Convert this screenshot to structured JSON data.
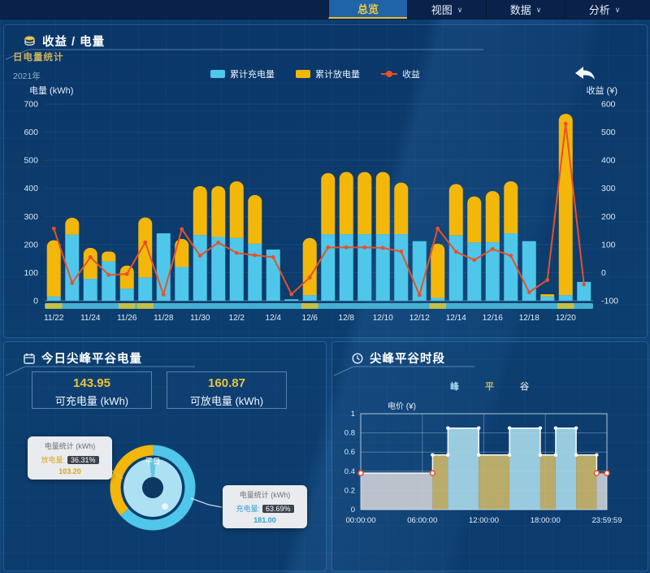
{
  "nav": {
    "tabs": [
      {
        "label": "总览",
        "active": true
      },
      {
        "label": "视图",
        "active": false
      },
      {
        "label": "数据",
        "active": false
      },
      {
        "label": "分析",
        "active": false
      }
    ]
  },
  "revenue_panel": {
    "title": "收益 / 电量",
    "subtitle": "日电量统计",
    "year": "2021年",
    "left_axis_label": "电量 (kWh)",
    "right_axis_label": "收益 (¥)"
  },
  "today_panel": {
    "title": "今日尖峰平谷电量",
    "stats": [
      {
        "value": "143.95",
        "label": "可充电量 (kWh)"
      },
      {
        "value": "160.87",
        "label": "可放电量 (kWh)"
      }
    ],
    "tooltips": {
      "header": "电量统计 (kWh)",
      "discharge": {
        "label": "放电量:",
        "pct": "36.31%",
        "value": "103.20"
      },
      "charge": {
        "label": "充电量:",
        "pct": "63.69%",
        "value": "181.00"
      }
    }
  },
  "tou_panel": {
    "title": "尖峰平谷时段",
    "price_axis_label": "电价 (¥)"
  },
  "colors": {
    "charge_bar": "#4ec7ea",
    "discharge_bar": "#f3b70a",
    "income_line": "#e8502a",
    "accent_yellow": "#e8bf2f",
    "nav_active_bg": "#1f63a8",
    "peak_fill": "#a6d7e8",
    "flat_fill": "#c9b469",
    "valley_fill": "#c9cdd4"
  },
  "chart_data": [
    {
      "id": "daily_energy_income",
      "type": "bar",
      "title": "日电量统计",
      "categories": [
        "11/22",
        "11/23",
        "11/24",
        "11/25",
        "11/26",
        "11/27",
        "11/28",
        "11/29",
        "11/30",
        "12/1",
        "12/2",
        "12/3",
        "12/4",
        "12/5",
        "12/6",
        "12/7",
        "12/8",
        "12/9",
        "12/10",
        "12/11",
        "12/12",
        "12/13",
        "12/14",
        "12/15",
        "12/16",
        "12/17",
        "12/18",
        "12/19",
        "12/20",
        "12/21"
      ],
      "x_label_every": 2,
      "series": [
        {
          "name": "累计充电量",
          "type": "bar",
          "stack": true,
          "color": "#4ec7ea",
          "values": [
            15,
            235,
            78,
            140,
            43,
            82,
            240,
            120,
            234,
            227,
            223,
            203,
            182,
            5,
            20,
            237,
            237,
            237,
            237,
            237,
            212,
            10,
            232,
            207,
            208,
            240,
            212,
            15,
            20,
            67
          ]
        },
        {
          "name": "累计放电量",
          "type": "bar",
          "stack": true,
          "color": "#f3b70a",
          "values": [
            200,
            60,
            110,
            35,
            82,
            214,
            0,
            100,
            174,
            181,
            202,
            173,
            0,
            0,
            203,
            217,
            221,
            221,
            221,
            183,
            0,
            193,
            183,
            164,
            182,
            185,
            0,
            8,
            645,
            0
          ]
        },
        {
          "name": "收益",
          "type": "line",
          "axis": "right",
          "color": "#e8502a",
          "values": [
            157,
            -37,
            55,
            -8,
            -5,
            108,
            -78,
            155,
            60,
            107,
            70,
            62,
            55,
            -77,
            -17,
            90,
            90,
            90,
            88,
            75,
            -80,
            157,
            74,
            45,
            84,
            60,
            -70,
            -26,
            530,
            -42
          ]
        }
      ],
      "left_axis": {
        "label": "电量 (kWh)",
        "min": 0,
        "max": 700,
        "step": 100
      },
      "right_axis": {
        "label": "收益 (¥)",
        "min": -100,
        "max": 600,
        "step": 100
      },
      "legend_position": "top-center",
      "grid": true
    },
    {
      "id": "tou_price_periods",
      "type": "area",
      "title": "尖峰平谷时段",
      "ylabel": "电价 (¥)",
      "ylim": [
        0,
        1
      ],
      "yticks": [
        0,
        0.2,
        0.4,
        0.6,
        0.8,
        1
      ],
      "x_tick_labels": [
        "00:00:00",
        "06:00:00",
        "12:00:00",
        "18:00:00",
        "23:59:59"
      ],
      "x_tick_hours": [
        0,
        6,
        12,
        18,
        24
      ],
      "legend": [
        {
          "label": "峰",
          "color": "#a6d7e8"
        },
        {
          "label": "平",
          "color": "#c9b469"
        },
        {
          "label": "谷",
          "color": "#c9cdd4"
        }
      ],
      "segments": [
        {
          "period": "谷",
          "start_hour": 0,
          "end_hour": 7,
          "price": 0.38
        },
        {
          "period": "平",
          "start_hour": 7,
          "end_hour": 8.5,
          "price": 0.57
        },
        {
          "period": "峰",
          "start_hour": 8.5,
          "end_hour": 11.5,
          "price": 0.85
        },
        {
          "period": "平",
          "start_hour": 11.5,
          "end_hour": 14.5,
          "price": 0.57
        },
        {
          "period": "峰",
          "start_hour": 14.5,
          "end_hour": 17.5,
          "price": 0.85
        },
        {
          "period": "平",
          "start_hour": 17.5,
          "end_hour": 19,
          "price": 0.57
        },
        {
          "period": "峰",
          "start_hour": 19,
          "end_hour": 21,
          "price": 0.85
        },
        {
          "period": "平",
          "start_hour": 21,
          "end_hour": 23,
          "price": 0.57
        },
        {
          "period": "谷",
          "start_hour": 23,
          "end_hour": 24,
          "price": 0.38
        }
      ],
      "grid": true
    },
    {
      "id": "today_energy_donut",
      "type": "pie",
      "center_label": "平日",
      "slices": [
        {
          "label": "充电量",
          "pct": 63.69,
          "value": 181.0,
          "color": "#4ec7ea"
        },
        {
          "label": "放电量",
          "pct": 36.31,
          "value": 103.2,
          "color": "#f3b70a"
        }
      ]
    }
  ]
}
